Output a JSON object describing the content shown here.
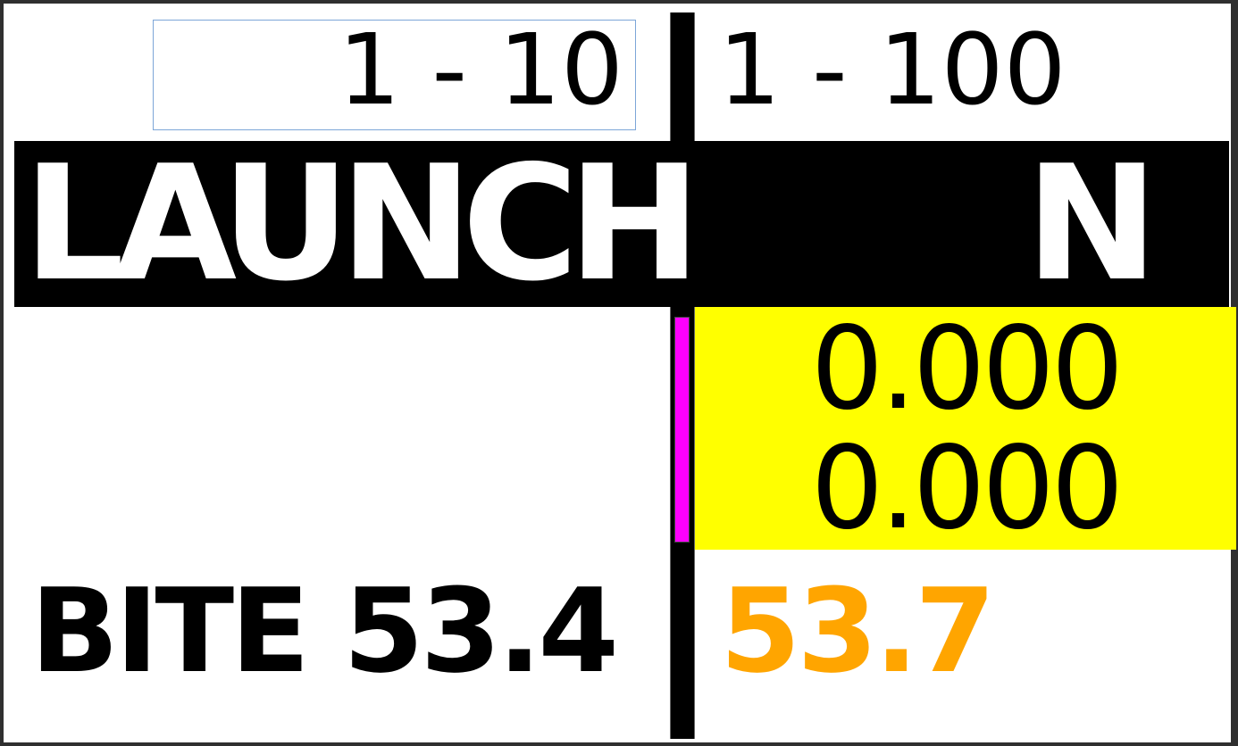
{
  "ranges": {
    "left": "1 - 10",
    "right": "1 - 100"
  },
  "mode": {
    "label": "LAUNCH",
    "gear": "N"
  },
  "readout": {
    "line1": "0.000",
    "line2": "0.000"
  },
  "bite": {
    "label": "BITE 53.4",
    "alt_value": "53.7"
  },
  "colors": {
    "indicator": "#ff00ff",
    "readout_bg": "#ffff00",
    "alt_value": "#ffa500",
    "banner_bg": "#000000",
    "range_box_border": "#7da6d8"
  }
}
